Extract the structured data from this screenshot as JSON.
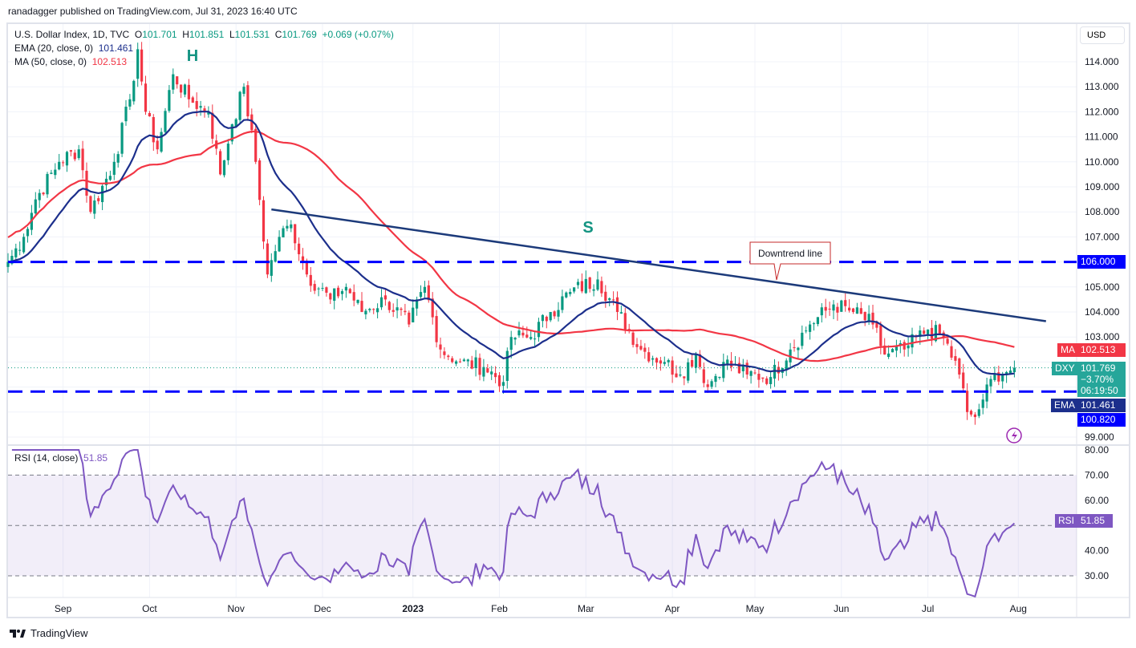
{
  "header": {
    "published": "ranadagger published on TradingView.com, Jul 31, 2023 16:40 UTC"
  },
  "legend": {
    "symbol": "U.S. Dollar Index, 1D, TVC",
    "o_label": "O",
    "o": "101.701",
    "h_label": "H",
    "h": "101.851",
    "l_label": "L",
    "l": "101.531",
    "c_label": "C",
    "c": "101.769",
    "change": "+0.069 (+0.07%)",
    "ema_label": "EMA (20, close, 0)",
    "ema": "101.461",
    "ma_label": "MA (50, close, 0)",
    "ma": "102.513",
    "rsi_label": "RSI (14, close)",
    "rsi": "51.85"
  },
  "currency": "USD",
  "tags": {
    "ma": "MA",
    "ma_val": "102.513",
    "dxy": "DXY",
    "dxy_val": "101.769",
    "dxy_chg": "−3.70%",
    "dxy_timer": "06:19:50",
    "ema": "EMA",
    "ema_val": "101.461",
    "support_val": "100.820",
    "resist_val": "106.000",
    "rsi": "RSI",
    "rsi_val": "51.85"
  },
  "annotations": {
    "head": "H",
    "shoulder": "S",
    "callout": "Downtrend line"
  },
  "footer": {
    "brand": "TradingView"
  },
  "colors": {
    "up": "#089981",
    "down": "#f23645",
    "ema": "#1c2f8c",
    "ma": "#f23645",
    "rsi": "#7e57c2",
    "level": "#0000ff"
  },
  "chart_data": {
    "type": "candlestick",
    "title": "U.S. Dollar Index, 1D",
    "price_ticks": [
      99,
      100,
      101,
      102,
      103,
      104,
      105,
      106,
      107,
      108,
      109,
      110,
      111,
      112,
      113,
      114
    ],
    "rsi_ticks": [
      30,
      40,
      50,
      60,
      70,
      80
    ],
    "time_labels": [
      "Sep",
      "Oct",
      "Nov",
      "Dec",
      "2023",
      "Feb",
      "Mar",
      "Apr",
      "May",
      "Jun",
      "Jul",
      "Aug"
    ],
    "time_label_bars": [
      14,
      36,
      58,
      80,
      103,
      125,
      147,
      169,
      190,
      212,
      234,
      257
    ],
    "horizontal_levels": [
      106.0,
      100.82
    ],
    "downtrend_line": {
      "from": [
        67,
        108.1
      ],
      "to": [
        262,
        103.6
      ]
    },
    "close_anchors": [
      [
        0,
        106
      ],
      [
        4,
        107
      ],
      [
        7,
        108.5
      ],
      [
        13,
        110
      ],
      [
        18,
        110.5
      ],
      [
        21,
        108
      ],
      [
        27,
        110
      ],
      [
        31,
        112.5
      ],
      [
        33,
        114.5
      ],
      [
        35,
        112
      ],
      [
        38,
        110.5
      ],
      [
        42,
        113.5
      ],
      [
        46,
        112.5
      ],
      [
        51,
        112
      ],
      [
        54,
        109.5
      ],
      [
        57,
        111.5
      ],
      [
        60,
        113
      ],
      [
        63,
        110
      ],
      [
        66,
        105.5
      ],
      [
        69,
        107
      ],
      [
        72,
        107.5
      ],
      [
        76,
        105.5
      ],
      [
        82,
        104.5
      ],
      [
        86,
        105
      ],
      [
        90,
        104
      ],
      [
        96,
        104.5
      ],
      [
        102,
        103.5
      ],
      [
        106,
        105
      ],
      [
        110,
        102.5
      ],
      [
        115,
        102
      ],
      [
        121,
        101.8
      ],
      [
        126,
        101.2
      ],
      [
        128,
        103
      ],
      [
        133,
        103
      ],
      [
        138,
        104
      ],
      [
        143,
        104.8
      ],
      [
        150,
        105.3
      ],
      [
        155,
        104
      ],
      [
        161,
        102.5
      ],
      [
        167,
        102
      ],
      [
        171,
        101.5
      ],
      [
        175,
        102.3
      ],
      [
        178,
        101
      ],
      [
        182,
        102
      ],
      [
        188,
        101.5
      ],
      [
        194,
        101.4
      ],
      [
        199,
        102.5
      ],
      [
        204,
        103.5
      ],
      [
        210,
        104.3
      ],
      [
        215,
        104
      ],
      [
        220,
        103.5
      ],
      [
        223,
        102.3
      ],
      [
        228,
        102.5
      ],
      [
        234,
        103.3
      ],
      [
        238,
        103
      ],
      [
        242,
        101.5
      ],
      [
        244,
        100
      ],
      [
        246,
        99.8
      ],
      [
        248,
        100.5
      ],
      [
        251,
        101.5
      ],
      [
        254,
        101.6
      ],
      [
        256,
        101.769
      ]
    ]
  }
}
